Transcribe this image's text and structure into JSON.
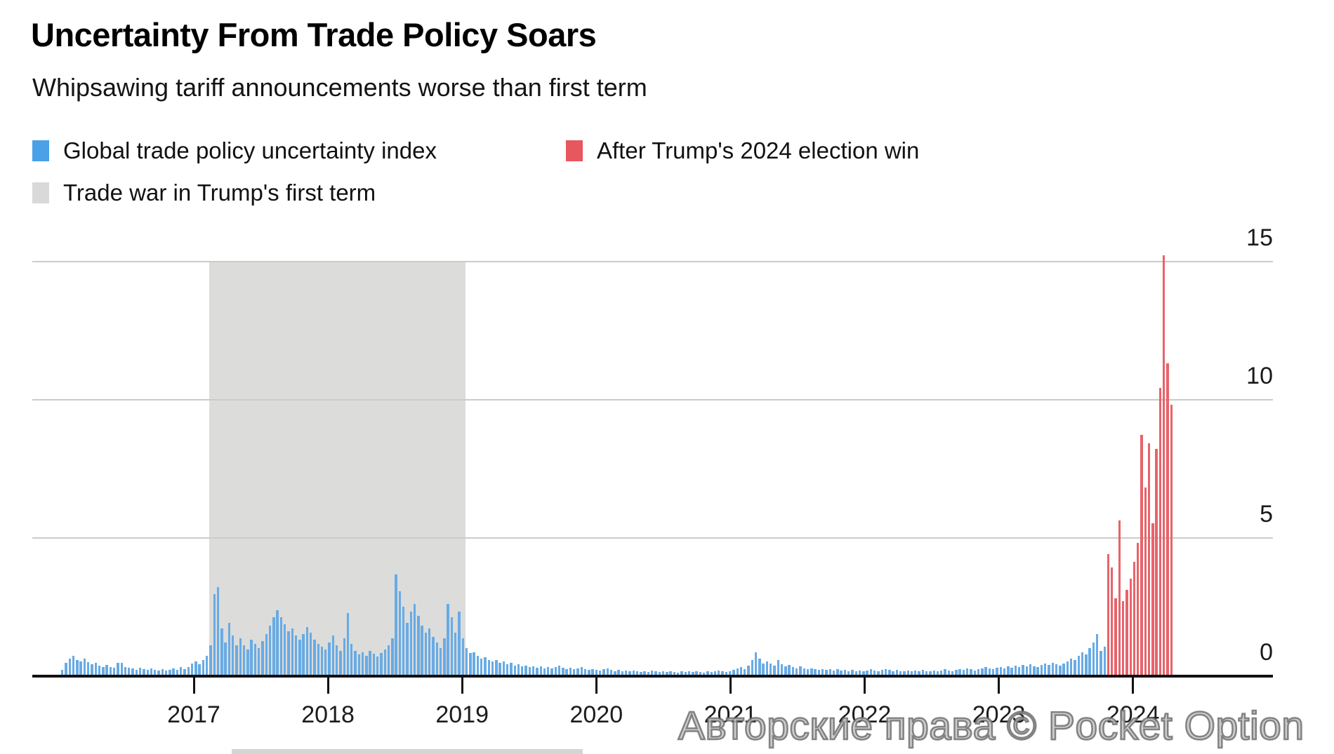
{
  "header": {
    "title": "Uncertainty From Trade Policy Soars",
    "subtitle": "Whipsawing tariff announcements worse than first term"
  },
  "legend": {
    "items": [
      {
        "id": "global-index",
        "label": "Global trade policy uncertainty index",
        "color": "#4aa1e8"
      },
      {
        "id": "after-election",
        "label": "After Trump's 2024 election win",
        "color": "#e7575e"
      },
      {
        "id": "trade-war-band",
        "label": "Trade war in Trump's first term",
        "color": "#d9d9d9"
      }
    ]
  },
  "watermark": {
    "text": "Авторские права © Pocket Option"
  },
  "chart_data": {
    "type": "bar",
    "title": "Uncertainty From Trade Policy Soars",
    "subtitle": "Whipsawing tariff announcements worse than first term",
    "xlabel": "",
    "ylabel": "",
    "ylim": [
      0,
      15
    ],
    "yticks": [
      0,
      5,
      10,
      15
    ],
    "x_tick_labels": [
      "2017",
      "2018",
      "2019",
      "2020",
      "2021",
      "2022",
      "2023",
      "2024"
    ],
    "grid": "horizontal",
    "legend_position": "top-left",
    "band": {
      "label": "Trade war in Trump's first term",
      "color": "#dcdcda",
      "start_index": 40,
      "end_index": 109
    },
    "series": [
      {
        "name": "Global trade policy uncertainty index",
        "color": "#68abe5",
        "values": [
          0.2,
          0.45,
          0.6,
          0.7,
          0.55,
          0.5,
          0.62,
          0.48,
          0.4,
          0.45,
          0.35,
          0.3,
          0.38,
          0.3,
          0.28,
          0.45,
          0.45,
          0.3,
          0.28,
          0.25,
          0.2,
          0.28,
          0.22,
          0.2,
          0.25,
          0.2,
          0.18,
          0.22,
          0.18,
          0.2,
          0.25,
          0.2,
          0.3,
          0.24,
          0.3,
          0.42,
          0.5,
          0.4,
          0.55,
          0.7,
          1.1,
          2.95,
          3.2,
          1.7,
          1.2,
          1.9,
          1.45,
          1.1,
          1.35,
          1.1,
          0.95,
          1.3,
          1.15,
          1.0,
          1.25,
          1.5,
          1.8,
          2.1,
          2.35,
          2.1,
          1.85,
          1.6,
          1.7,
          1.45,
          1.3,
          1.5,
          1.75,
          1.55,
          1.3,
          1.15,
          1.05,
          0.95,
          1.2,
          1.45,
          1.1,
          0.9,
          1.35,
          2.25,
          1.15,
          0.9,
          0.75,
          0.85,
          0.7,
          0.9,
          0.78,
          0.68,
          0.8,
          0.95,
          1.1,
          1.35,
          3.65,
          3.05,
          2.5,
          1.9,
          2.3,
          2.6,
          2.15,
          1.8,
          1.55,
          1.7,
          1.4,
          1.2,
          1.0,
          1.35,
          2.6,
          2.1,
          1.55,
          2.3,
          1.35,
          1.0,
          0.8,
          0.85,
          0.7,
          0.6,
          0.65,
          0.55,
          0.5,
          0.55,
          0.45,
          0.5,
          0.4,
          0.45,
          0.35,
          0.4,
          0.32,
          0.36,
          0.3,
          0.34,
          0.28,
          0.32,
          0.26,
          0.3,
          0.25,
          0.3,
          0.35,
          0.28,
          0.24,
          0.28,
          0.22,
          0.26,
          0.3,
          0.24,
          0.2,
          0.24,
          0.2,
          0.18,
          0.22,
          0.26,
          0.2,
          0.16,
          0.2,
          0.15,
          0.18,
          0.14,
          0.18,
          0.15,
          0.12,
          0.16,
          0.13,
          0.17,
          0.14,
          0.12,
          0.15,
          0.12,
          0.16,
          0.13,
          0.11,
          0.14,
          0.12,
          0.15,
          0.12,
          0.16,
          0.13,
          0.11,
          0.14,
          0.12,
          0.15,
          0.18,
          0.14,
          0.12,
          0.16,
          0.2,
          0.25,
          0.3,
          0.24,
          0.35,
          0.55,
          0.85,
          0.6,
          0.42,
          0.5,
          0.44,
          0.36,
          0.55,
          0.4,
          0.32,
          0.38,
          0.3,
          0.26,
          0.32,
          0.26,
          0.22,
          0.26,
          0.22,
          0.2,
          0.24,
          0.2,
          0.22,
          0.18,
          0.22,
          0.18,
          0.2,
          0.16,
          0.2,
          0.16,
          0.18,
          0.15,
          0.18,
          0.22,
          0.18,
          0.15,
          0.2,
          0.24,
          0.2,
          0.16,
          0.2,
          0.16,
          0.14,
          0.18,
          0.15,
          0.18,
          0.15,
          0.2,
          0.16,
          0.14,
          0.18,
          0.15,
          0.18,
          0.22,
          0.18,
          0.15,
          0.2,
          0.24,
          0.2,
          0.26,
          0.22,
          0.18,
          0.22,
          0.26,
          0.3,
          0.26,
          0.22,
          0.28,
          0.3,
          0.26,
          0.32,
          0.28,
          0.35,
          0.3,
          0.38,
          0.32,
          0.4,
          0.34,
          0.3,
          0.38,
          0.44,
          0.38,
          0.46,
          0.4,
          0.36,
          0.44,
          0.5,
          0.62,
          0.55,
          0.7,
          0.85,
          0.75,
          1.0,
          1.2,
          1.5,
          0.9,
          1.05
        ]
      },
      {
        "name": "After Trump's 2024 election win",
        "color": "#e8636a",
        "values": [
          4.4,
          3.9,
          2.8,
          5.6,
          2.7,
          3.1,
          3.5,
          4.1,
          4.8,
          8.7,
          6.8,
          8.4,
          5.5,
          8.2,
          10.4,
          15.2,
          11.3,
          9.8
        ]
      }
    ]
  }
}
